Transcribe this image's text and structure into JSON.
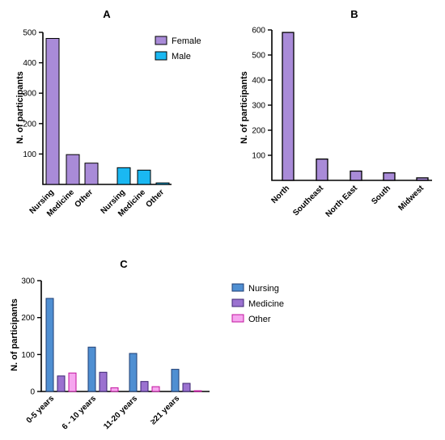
{
  "chart_data": [
    {
      "panel": "A",
      "type": "bar",
      "ylabel": "N. of participants",
      "ylim": [
        0,
        500
      ],
      "yticks": [
        100,
        200,
        300,
        400,
        500
      ],
      "series": [
        {
          "name": "Female",
          "color": "#a98bd8",
          "categories": [
            "Nursing",
            "Medicine",
            "Other"
          ],
          "values": [
            480,
            98,
            70
          ]
        },
        {
          "name": "Male",
          "color": "#1ab8f2",
          "categories": [
            "Nursing",
            "Medicine",
            "Other"
          ],
          "values": [
            55,
            47,
            5
          ]
        }
      ],
      "legend_position": "top-right"
    },
    {
      "panel": "B",
      "type": "bar",
      "ylabel": "N. of participants",
      "ylim": [
        0,
        600
      ],
      "yticks": [
        100,
        200,
        300,
        400,
        500,
        600
      ],
      "categories": [
        "North",
        "Southeast",
        "North East",
        "South",
        "Midwest"
      ],
      "values": [
        590,
        85,
        37,
        30,
        10
      ],
      "color": "#a98bd8"
    },
    {
      "panel": "C",
      "type": "bar",
      "ylabel": "N. of participants",
      "ylim": [
        0,
        300
      ],
      "yticks": [
        0,
        100,
        200,
        300
      ],
      "categories": [
        "0-5 years",
        "6 - 10 years",
        "11-20 years",
        "≥21 years"
      ],
      "series": [
        {
          "name": "Nursing",
          "color": "#4f8fd2",
          "values": [
            252,
            120,
            103,
            60
          ]
        },
        {
          "name": "Medicine",
          "color": "#9b72d0",
          "values": [
            42,
            52,
            27,
            22
          ]
        },
        {
          "name": "Other",
          "color": "#f6a6ef",
          "values": [
            50,
            10,
            13,
            2
          ]
        }
      ],
      "legend_position": "right"
    }
  ]
}
